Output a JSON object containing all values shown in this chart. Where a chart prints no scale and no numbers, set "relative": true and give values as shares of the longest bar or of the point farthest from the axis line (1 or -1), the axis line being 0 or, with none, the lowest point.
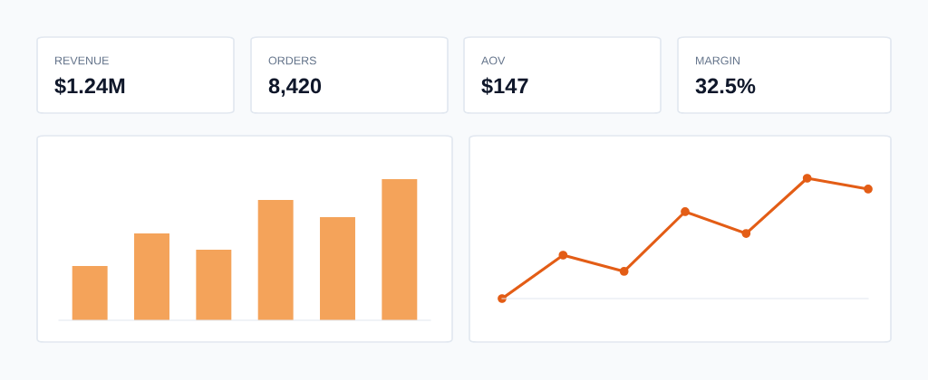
{
  "chart_data": [
    {
      "type": "other",
      "title": "REVENUE",
      "annotations": [
        "$1.24M"
      ]
    },
    {
      "type": "other",
      "title": "ORDERS",
      "annotations": [
        "8,420"
      ]
    },
    {
      "type": "other",
      "title": "AOV",
      "annotations": [
        "$147"
      ]
    },
    {
      "type": "other",
      "title": "MARGIN",
      "annotations": [
        "32.5%"
      ]
    },
    {
      "type": "bar",
      "relative": true,
      "categories": [
        null,
        null,
        null,
        null,
        null,
        null
      ],
      "values": [
        0.385,
        0.615,
        0.5,
        0.853,
        0.731,
        1
      ],
      "color": "#f4a35a"
    },
    {
      "type": "line",
      "relative": true,
      "categories": [
        null,
        null,
        null,
        null,
        null,
        null,
        null
      ],
      "values": [
        0,
        0.361,
        0.226,
        0.722,
        0.541,
        1,
        0.91
      ],
      "color": "#e35d16",
      "marker": "circle"
    }
  ]
}
